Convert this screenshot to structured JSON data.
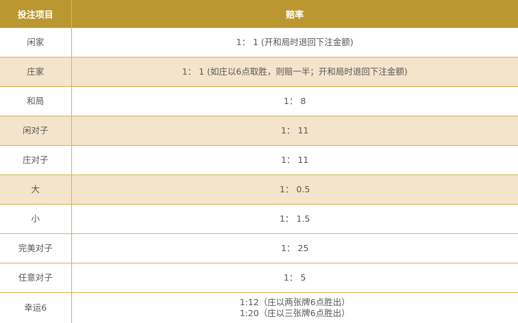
{
  "table": {
    "headers": [
      "投注项目",
      "赔率"
    ],
    "rows": [
      {
        "item": "闲家",
        "odds": "1： 1 (开和局时退回下注金额)"
      },
      {
        "item": "庄家",
        "odds": "1： 1 (如庄以6点取胜，则赔一半；开和局时退回下注金额)"
      },
      {
        "item": "和局",
        "odds": "1： 8"
      },
      {
        "item": "闲对子",
        "odds": "1： 11"
      },
      {
        "item": "庄对子",
        "odds": "1： 11"
      },
      {
        "item": "大",
        "odds": "1： 0.5"
      },
      {
        "item": "小",
        "odds": "1： 1.5"
      },
      {
        "item": "完美对子",
        "odds": "1： 25"
      },
      {
        "item": "任意对子",
        "odds": "1： 5"
      },
      {
        "item": "幸运6",
        "odds_lines": [
          "1:12（庄以两张牌6点胜出）",
          "1:20（庄以三张牌6点胜出）"
        ]
      }
    ]
  },
  "colors": {
    "header_bg": "#bb9731",
    "alt_row_bg": "#f5e4cc",
    "border": "#d4b24c",
    "text": "#555555"
  }
}
